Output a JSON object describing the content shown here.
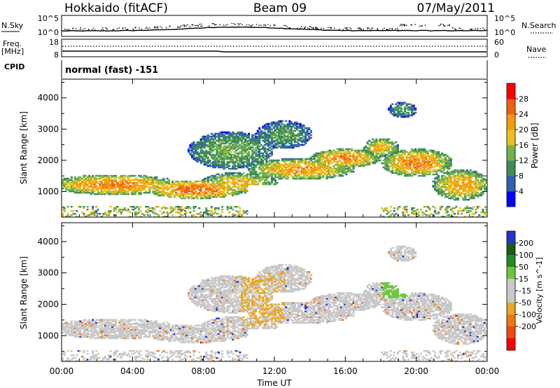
{
  "header": {
    "title_left": "Hokkaido (fitACF)",
    "title_center": "Beam 09",
    "title_right": "07/May/2011"
  },
  "top_panel": {
    "left_label_nsky": "N.Sky",
    "left_label_freq": "Freq.",
    "left_label_mhz": "[MHz]",
    "left_label_cpid": "CPID",
    "nsky_ticks": [
      "10^5",
      "10^0"
    ],
    "freq_ticks": [
      "18",
      "8"
    ],
    "right_nsearch_ticks": [
      "10^5",
      "10^0"
    ],
    "right_nave_ticks": [
      "60",
      "0"
    ],
    "right_label_nsearch": "N.Search",
    "right_label_nave": "Nave",
    "cpid_text": "normal (fast) -151"
  },
  "colors": {
    "power_scale": [
      "#0000ff",
      "#2f5fb0",
      "#3e8c59",
      "#74b24a",
      "#e8c020",
      "#f59a10",
      "#f06010",
      "#ff0000"
    ],
    "velocity_scale": [
      "#2433c8",
      "#1b5a1b",
      "#1f8a1f",
      "#6ec540",
      "#c8c8c8",
      "#c8c8c8",
      "#e8a828",
      "#f07810",
      "#f04810",
      "#ff0000"
    ]
  },
  "chart_data": [
    {
      "type": "heatmap",
      "name": "Power",
      "xlabel": "",
      "ylabel": "Slant Range [km]",
      "xlim": [
        0,
        24
      ],
      "ylim": [
        180,
        4600
      ],
      "yticks": [
        "1000",
        "2000",
        "3000",
        "4000"
      ],
      "colorbar": {
        "label": "Power [dB]",
        "ticks": [
          "4",
          "8",
          "12",
          "16",
          "20",
          "24",
          "28"
        ],
        "range": [
          0,
          32
        ]
      },
      "regions": [
        {
          "t0": 0.0,
          "t1": 6.5,
          "r0": 900,
          "r1": 1550,
          "level": "mixed"
        },
        {
          "t0": 5.0,
          "t1": 11.0,
          "r0": 700,
          "r1": 1300,
          "level": "high"
        },
        {
          "t0": 11.0,
          "t1": 18.0,
          "r0": 1300,
          "r1": 2300,
          "level": "high"
        },
        {
          "t0": 18.0,
          "t1": 24.0,
          "r0": 700,
          "r1": 2600,
          "level": "high"
        },
        {
          "t0": 6.0,
          "t1": 14.0,
          "r0": 1800,
          "r1": 3200,
          "level": "mixed"
        }
      ]
    },
    {
      "type": "heatmap",
      "name": "Velocity",
      "xlabel": "Time UT",
      "ylabel": "Slant Range [km]",
      "xlim": [
        0,
        24
      ],
      "ylim": [
        180,
        4600
      ],
      "xticks": [
        "00:00",
        "04:00",
        "08:00",
        "12:00",
        "16:00",
        "20:00",
        "00:00"
      ],
      "yticks": [
        "1000",
        "2000",
        "3000",
        "4000"
      ],
      "colorbar": {
        "label": "Velocity [m s^-1]",
        "ticks": [
          "200",
          "100",
          "50",
          "15",
          "-15",
          "-50",
          "-100",
          "-200"
        ],
        "range": [
          -250,
          250
        ]
      }
    }
  ]
}
